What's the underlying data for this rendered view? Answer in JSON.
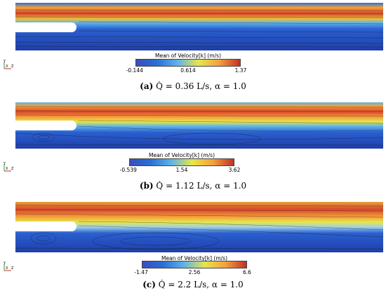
{
  "panels": [
    {
      "colorbar_title": "Mean of Velocity[k] (m/s)",
      "ticks": [
        "-0.144",
        "0.614",
        "1.37"
      ],
      "caption_label": "(a)",
      "caption_text": "Q̇ = 0.36 L/s, α = 1.0"
    },
    {
      "colorbar_title": "Mean of Velocity[k] (m/s)",
      "ticks": [
        "-0.539",
        "1.54",
        "3.62"
      ],
      "caption_label": "(b)",
      "caption_text": "Q̇ = 1.12 L/s, α = 1.0"
    },
    {
      "colorbar_title": "Mean of Velocity[k] (m/s)",
      "ticks": [
        "-1.47",
        "2.56",
        "6.6"
      ],
      "caption_label": "(c)",
      "caption_text": "Q̇ = 2.2 L/s, α = 1.0"
    }
  ],
  "axes_triad": {
    "y": "Y",
    "x": "X",
    "z": "Z"
  },
  "colormap": [
    "#3b4cc0",
    "#2a6fd6",
    "#5fb3ea",
    "#e6e64a",
    "#f4a13a",
    "#c0302a"
  ]
}
